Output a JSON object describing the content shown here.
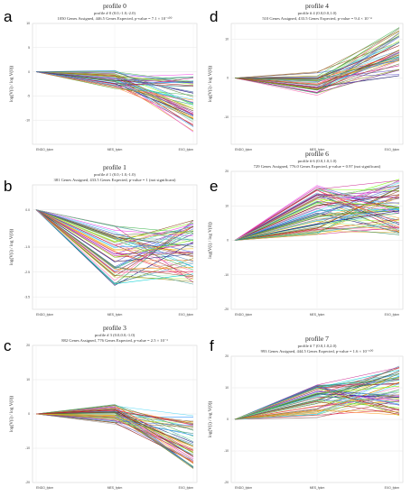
{
  "x_labels": [
    "ENDO_fpkm",
    "MES_fpkm",
    "EXO_fpkm"
  ],
  "ylabel": "log(V(i) / log V(0))",
  "chart_data": [
    {
      "letter": "a",
      "type": "line",
      "title": "profile 0",
      "subtitle": "profile # 0 (0.0,-1.0,-2.0)",
      "subtitle2": "1050 Genes Assigned, 446.5 Genes Expected, p-value = 7.1 × 10⁻¹⁰⁰",
      "ylim": [
        -15,
        10
      ],
      "yticks": [
        10,
        5,
        0,
        -5,
        -10
      ],
      "grid": true,
      "num_lines": 55,
      "mid_range": [
        -3.5,
        0.3
      ],
      "end_range": [
        -12.5,
        -0.5
      ]
    },
    {
      "letter": "d",
      "type": "line",
      "title": "profile 4",
      "subtitle": "profile # 4 (0.0,0.0,1.0)",
      "subtitle2": "510 Genes Assigned, 433.5 Genes Expected, p-value = 9.4 × 10⁻⁴",
      "ylim": [
        -17,
        14
      ],
      "yticks": [
        10,
        0,
        -10
      ],
      "grid": true,
      "num_lines": 50,
      "mid_range": [
        -4.5,
        1.8
      ],
      "end_range": [
        0.5,
        13
      ]
    },
    {
      "letter": "b",
      "type": "line",
      "title": "profile 1",
      "subtitle": "profile # 1 (0.0,-1.0,-1.0)",
      "subtitle2": "381 Genes Assigned, 433.5 Genes Expected, p-value = 1 (not significant)",
      "ylim": [
        -4,
        1
      ],
      "yticks": [
        0.0,
        -1.5,
        -2.5,
        -3.5
      ],
      "ytick_labels": [
        "0.0",
        "-1.5",
        "-2.5",
        "-3.5"
      ],
      "grid": true,
      "num_lines": 60,
      "mid_range": [
        -3.1,
        -0.6
      ],
      "end_range": [
        -3.0,
        -0.4
      ]
    },
    {
      "letter": "e",
      "type": "line",
      "title": "profile 6",
      "subtitle": "profile # 6 (0.0,1.0,1.0)",
      "subtitle2": "729 Genes Assigned, 776.0 Genes Expected, p-value = 0.97 (not significant)",
      "ylim": [
        -20,
        20
      ],
      "yticks": [
        20,
        10,
        0,
        -10,
        -20
      ],
      "grid": true,
      "num_lines": 70,
      "mid_range": [
        1.5,
        16
      ],
      "end_range": [
        1.5,
        18
      ]
    },
    {
      "letter": "c",
      "type": "line",
      "title": "profile 3",
      "subtitle": "profile # 3 (0.0,0.0,-1.0)",
      "subtitle2": "882 Genes Assigned, 776 Genes Expected, p-value = 2.5 × 10⁻³",
      "ylim": [
        -20,
        20
      ],
      "yticks": [
        20,
        10,
        0,
        -10,
        -20
      ],
      "grid": true,
      "num_lines": 55,
      "mid_range": [
        -3,
        3
      ],
      "end_range": [
        -16,
        -0.5
      ]
    },
    {
      "letter": "f",
      "type": "line",
      "title": "profile 7",
      "subtitle": "profile # 7 (0.0,1.0,2.0)",
      "subtitle2": "993 Genes Assigned, 444.5 Genes Expected, p-value = 1.6 × 10⁻¹⁰⁰",
      "ylim": [
        -20,
        20
      ],
      "yticks": [
        20,
        10,
        0,
        -10,
        -20
      ],
      "grid": true,
      "num_lines": 65,
      "mid_range": [
        0.5,
        11
      ],
      "end_range": [
        1,
        17
      ]
    }
  ],
  "palette": [
    "#e6194b",
    "#3cb44b",
    "#f5c518",
    "#4363d8",
    "#f58231",
    "#911eb4",
    "#42d4f4",
    "#f032e6",
    "#bfef45",
    "#9a6324",
    "#469990",
    "#800000",
    "#aaffc3",
    "#808000",
    "#000075",
    "#a9a9a9",
    "#2e8b57",
    "#ff69b4",
    "#1e90ff",
    "#ff8c00",
    "#6a5acd",
    "#20b2aa",
    "#b22222",
    "#daa520",
    "#556b2f",
    "#8b4513",
    "#00ced1",
    "#c71585",
    "#7cfc00",
    "#4682b4"
  ]
}
